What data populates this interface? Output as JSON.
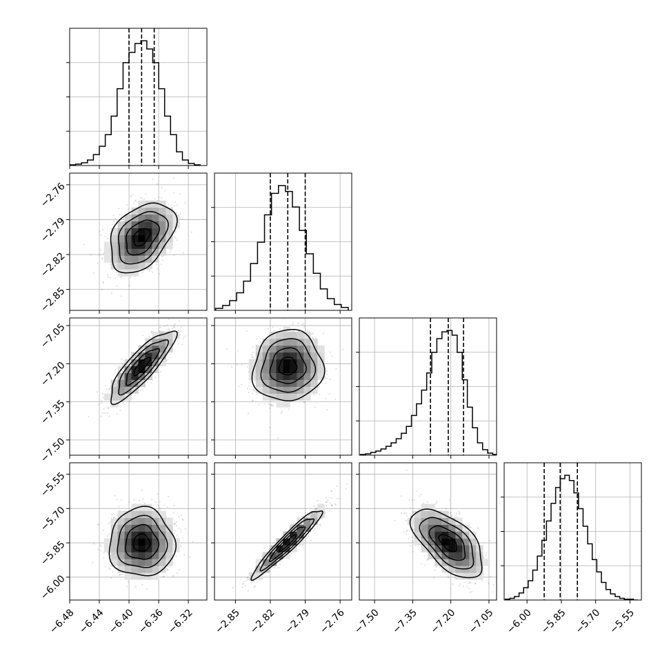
{
  "chart_data": {
    "type": "corner",
    "grid": true,
    "parameters": [
      {
        "range": [
          -6.48,
          -6.295
        ],
        "ticks": [
          "-6.48",
          "-6.44",
          "-6.40",
          "-6.36",
          "-6.32"
        ],
        "tick_values": [
          -6.48,
          -6.44,
          -6.4,
          -6.36,
          -6.32
        ],
        "quantiles": [
          -6.4,
          -6.383,
          -6.366
        ],
        "histogram": {
          "bin_centers": [
            -6.476,
            -6.468,
            -6.46,
            -6.452,
            -6.444,
            -6.436,
            -6.428,
            -6.42,
            -6.412,
            -6.404,
            -6.396,
            -6.388,
            -6.38,
            -6.372,
            -6.364,
            -6.356,
            -6.348,
            -6.34,
            -6.332,
            -6.324,
            -6.316,
            -6.308
          ],
          "counts": [
            1,
            2,
            4,
            8,
            16,
            28,
            45,
            72,
            112,
            150,
            165,
            178,
            182,
            170,
            150,
            112,
            72,
            45,
            20,
            8,
            3,
            1
          ]
        }
      },
      {
        "range": [
          -2.868,
          -2.75
        ],
        "ticks": [
          "-2.85",
          "-2.82",
          "-2.79",
          "-2.76"
        ],
        "tick_values": [
          -2.85,
          -2.82,
          -2.79,
          -2.76
        ],
        "quantiles": [
          -2.82,
          -2.805,
          -2.79
        ],
        "histogram": {
          "bin_centers": [
            -2.864,
            -2.858,
            -2.852,
            -2.846,
            -2.84,
            -2.834,
            -2.828,
            -2.822,
            -2.816,
            -2.81,
            -2.804,
            -2.798,
            -2.792,
            -2.786,
            -2.78,
            -2.774,
            -2.768,
            -2.762,
            -2.756
          ],
          "counts": [
            2,
            5,
            10,
            18,
            30,
            48,
            70,
            98,
            120,
            128,
            122,
            106,
            82,
            58,
            38,
            22,
            12,
            6,
            3
          ]
        }
      },
      {
        "range": [
          -7.56,
          -7.02
        ],
        "ticks": [
          "-7.50",
          "-7.35",
          "-7.20",
          "-7.05"
        ],
        "tick_values": [
          -7.5,
          -7.35,
          -7.2,
          -7.05
        ],
        "quantiles": [
          -7.28,
          -7.21,
          -7.15
        ],
        "histogram": {
          "bin_centers": [
            -7.545,
            -7.525,
            -7.505,
            -7.485,
            -7.465,
            -7.445,
            -7.425,
            -7.405,
            -7.385,
            -7.365,
            -7.345,
            -7.325,
            -7.305,
            -7.285,
            -7.265,
            -7.245,
            -7.225,
            -7.205,
            -7.185,
            -7.165,
            -7.145,
            -7.125,
            -7.105,
            -7.085,
            -7.065,
            -7.045,
            -7.025
          ],
          "counts": [
            1,
            2,
            4,
            6,
            9,
            13,
            18,
            24,
            32,
            42,
            58,
            75,
            95,
            120,
            150,
            170,
            180,
            182,
            175,
            150,
            110,
            70,
            40,
            18,
            8,
            3,
            1
          ]
        }
      },
      {
        "range": [
          -6.1,
          -5.5
        ],
        "ticks": [
          "-6.00",
          "-5.85",
          "-5.70",
          "-5.55"
        ],
        "tick_values": [
          -6.0,
          -5.85,
          -5.7,
          -5.55
        ],
        "quantiles": [
          -5.925,
          -5.855,
          -5.78
        ],
        "histogram": {
          "bin_centers": [
            -6.085,
            -6.065,
            -6.045,
            -6.025,
            -6.005,
            -5.985,
            -5.965,
            -5.945,
            -5.925,
            -5.905,
            -5.885,
            -5.865,
            -5.845,
            -5.825,
            -5.805,
            -5.785,
            -5.765,
            -5.745,
            -5.725,
            -5.705,
            -5.685,
            -5.665,
            -5.645,
            -5.625,
            -5.605,
            -5.585,
            -5.565,
            -5.545,
            -5.525
          ],
          "counts": [
            1,
            2,
            4,
            8,
            14,
            22,
            34,
            50,
            68,
            90,
            110,
            128,
            138,
            142,
            136,
            122,
            104,
            84,
            64,
            46,
            32,
            20,
            12,
            7,
            4,
            2,
            1,
            1,
            0
          ]
        }
      }
    ],
    "pairs": [
      {
        "row": 1,
        "col": 0,
        "mean": [
          -6.383,
          -2.805
        ],
        "sd": [
          0.022,
          0.015
        ],
        "corr": 0.4
      },
      {
        "row": 2,
        "col": 0,
        "mean": [
          -6.383,
          -7.21
        ],
        "sd": [
          0.022,
          0.07
        ],
        "corr": 0.85
      },
      {
        "row": 2,
        "col": 1,
        "mean": [
          -2.805,
          -7.21
        ],
        "sd": [
          0.015,
          0.07
        ],
        "corr": 0.05
      },
      {
        "row": 3,
        "col": 0,
        "mean": [
          -6.383,
          -5.85
        ],
        "sd": [
          0.022,
          0.075
        ],
        "corr": 0.0
      },
      {
        "row": 3,
        "col": 1,
        "mean": [
          -2.805,
          -5.85
        ],
        "sd": [
          0.015,
          0.075
        ],
        "corr": 0.95
      },
      {
        "row": 3,
        "col": 2,
        "mean": [
          -7.21,
          -5.85
        ],
        "sd": [
          0.07,
          0.075
        ],
        "corr": -0.6
      }
    ]
  }
}
